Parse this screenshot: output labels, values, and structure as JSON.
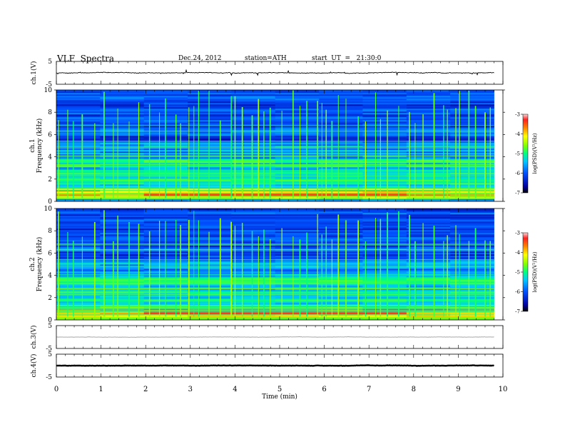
{
  "header": {
    "title": "VLF  Spectra",
    "date": "Dec.24, 2012",
    "station": "station=ATH",
    "start": "start  UT  =   21:30:0"
  },
  "chart_data": [
    {
      "type": "line",
      "ylabel": "ch.1(V)",
      "ylim": [
        -5,
        5
      ],
      "yticks": [
        "5",
        "-5"
      ],
      "level": 0,
      "noise": 0.25,
      "color": "#000000"
    },
    {
      "type": "heatmap",
      "ylabel_channel": "ch.1",
      "ylabel": "Frequency  (kHz)",
      "ylim": [
        0,
        10
      ],
      "yticks": [
        "0",
        "2",
        "4",
        "6",
        "8",
        "10"
      ],
      "colorbar": {
        "label": "log(PSD)(V²/Hz)",
        "ticks": [
          "-3",
          "-4",
          "-5",
          "-6",
          "-7"
        ],
        "range": [
          -7,
          -3
        ]
      }
    },
    {
      "type": "heatmap",
      "ylabel_channel": "ch.2",
      "ylabel": "Frequency  (kHz)",
      "ylim": [
        0,
        10
      ],
      "yticks": [
        "0",
        "2",
        "4",
        "6",
        "8",
        "10"
      ],
      "colorbar": {
        "label": "log(PSD)(V²/Hz)",
        "ticks": [
          "-3",
          "-4",
          "-5",
          "-6",
          "-7"
        ],
        "range": [
          -7,
          -3
        ]
      }
    },
    {
      "type": "line",
      "ylabel": "ch.3(V)",
      "ylim": [
        -5,
        5
      ],
      "yticks": [
        "5",
        "-5"
      ],
      "level": 0,
      "noise": 0.05,
      "color": "#444444"
    },
    {
      "type": "line",
      "ylabel": "ch.4(V)",
      "ylim": [
        -5,
        5
      ],
      "yticks": [
        "5",
        "-5"
      ],
      "level": 0,
      "noise": 0.12,
      "color": "#000000"
    }
  ],
  "xaxis": {
    "label": "Time  (min)",
    "xlim": [
      0,
      10
    ],
    "ticks": [
      "0",
      "1",
      "2",
      "3",
      "4",
      "5",
      "6",
      "7",
      "8",
      "9",
      "10"
    ],
    "data_end": 9.8
  }
}
